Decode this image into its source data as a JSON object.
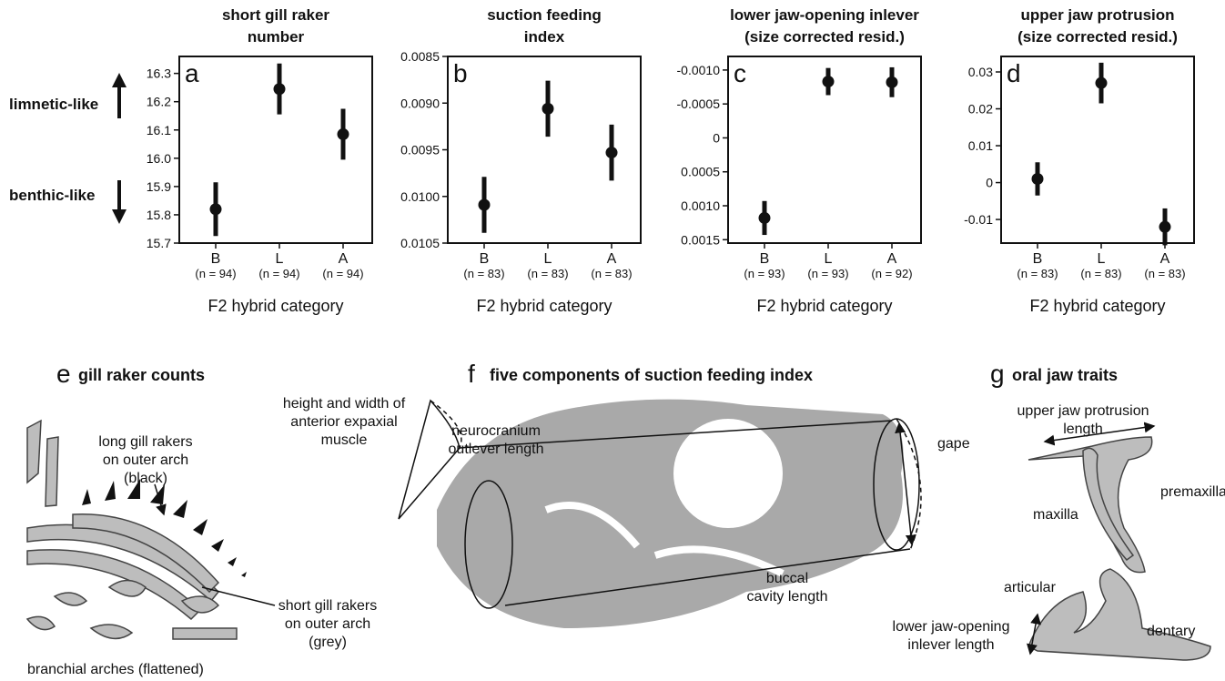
{
  "chart_data": [
    {
      "type": "errorbar",
      "panel": "a",
      "title": [
        "short gill raker",
        "number"
      ],
      "xlabel": "F2 hybrid category",
      "categories": [
        "B",
        "L",
        "A"
      ],
      "sample_sizes": [
        "(n = 94)",
        "(n = 94)",
        "(n = 94)"
      ],
      "values": [
        15.82,
        16.245,
        16.085
      ],
      "errors": [
        0.095,
        0.09,
        0.09
      ],
      "color": "#111111",
      "ylim": [
        15.7,
        16.36
      ],
      "yticks": [
        15.7,
        15.8,
        15.9,
        {
          "value": 16,
          "label": "16.0"
        },
        16.1,
        16.2,
        16.3
      ]
    },
    {
      "type": "errorbar",
      "panel": "b",
      "title": [
        "suction feeding",
        "index"
      ],
      "xlabel": "F2 hybrid category",
      "categories": [
        "B",
        "L",
        "A"
      ],
      "sample_sizes": [
        "(n = 83)",
        "(n = 83)",
        "(n = 83)"
      ],
      "values": [
        0.01009,
        0.00906,
        0.00953
      ],
      "errors": [
        0.0003,
        0.0003,
        0.0003
      ],
      "color": "#111111",
      "ylim": [
        0.0105,
        0.0085
      ],
      "yticks": [
        0.0085,
        {
          "value": 0.009,
          "label": "0.0090"
        },
        0.0095,
        {
          "value": 0.01,
          "label": "0.0100"
        },
        0.0105
      ]
    },
    {
      "type": "errorbar",
      "panel": "c",
      "title": [
        "lower jaw-opening inlever",
        "(size corrected resid.)"
      ],
      "xlabel": "F2 hybrid category",
      "categories": [
        "B",
        "L",
        "A"
      ],
      "sample_sizes": [
        "(n = 93)",
        "(n = 93)",
        "(n = 92)"
      ],
      "values": [
        0.00118,
        -0.00083,
        -0.00082
      ],
      "errors": [
        0.00025,
        0.0002,
        0.00022
      ],
      "color": "#111111",
      "ylim": [
        0.00155,
        -0.0012
      ],
      "yticks": [
        {
          "value": -0.001,
          "label": "-0.0010"
        },
        -0.0005,
        0,
        0.0005,
        {
          "value": 0.001,
          "label": "0.0010"
        },
        0.0015
      ]
    },
    {
      "type": "errorbar",
      "panel": "d",
      "title": [
        "upper jaw protrusion",
        "(size corrected resid.)"
      ],
      "xlabel": "F2 hybrid category",
      "categories": [
        "B",
        "L",
        "A"
      ],
      "sample_sizes": [
        "(n = 83)",
        "(n = 83)",
        "(n = 83)"
      ],
      "values": [
        0.001,
        0.027,
        -0.012
      ],
      "errors": [
        0.0045,
        0.0055,
        0.005
      ],
      "color": "#111111",
      "ylim": [
        -0.0164,
        0.0342
      ],
      "yticks": [
        0.03,
        0.02,
        0.01,
        0,
        -0.01
      ]
    }
  ],
  "side_labels": {
    "up": "limnetic-like",
    "down": "benthic-like"
  },
  "diagrams": {
    "e": {
      "letter": "e",
      "title": "gill raker counts",
      "long": [
        "long gill rakers",
        "on outer arch",
        "(black)"
      ],
      "short": [
        "short gill rakers",
        "on outer arch",
        "(grey)"
      ],
      "caption": "branchial arches (flattened)"
    },
    "f": {
      "letter": "f",
      "title": "five components of suction feeding index",
      "muscle": [
        "height and width of",
        "anterior expaxial",
        "muscle"
      ],
      "neuro": [
        "neurocranium",
        "outlever length"
      ],
      "gape": "gape",
      "buccal": [
        "buccal",
        "cavity length"
      ]
    },
    "g": {
      "letter": "g",
      "title": "oral jaw traits",
      "protrusion": [
        "upper jaw protrusion",
        "length"
      ],
      "premaxilla": "premaxilla",
      "maxilla": "maxilla",
      "articular": "articular",
      "dentary": "dentary",
      "inlever": [
        "lower jaw-opening",
        "inlever length"
      ]
    }
  }
}
